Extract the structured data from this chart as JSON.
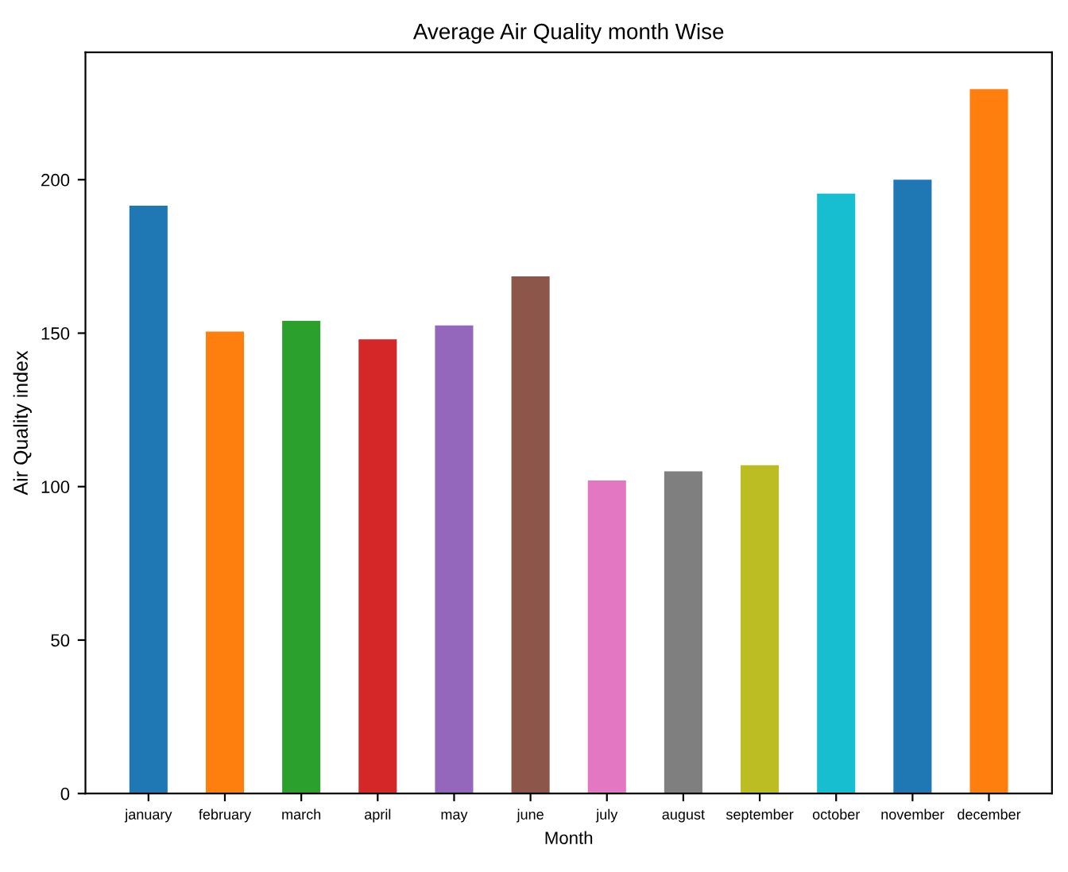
{
  "chart_data": {
    "type": "bar",
    "title": "Average Air Quality month Wise",
    "xlabel": "Month",
    "ylabel": "Air Quality index",
    "categories": [
      "january",
      "february",
      "march",
      "april",
      "may",
      "june",
      "july",
      "august",
      "september",
      "october",
      "november",
      "december"
    ],
    "values": [
      191.5,
      150.5,
      154,
      148,
      152.5,
      168.5,
      102,
      105,
      107,
      195.5,
      200,
      229.5
    ],
    "colors": [
      "#1f77b4",
      "#ff7f0e",
      "#2ca02c",
      "#d62728",
      "#9467bd",
      "#8c564b",
      "#e377c2",
      "#7f7f7f",
      "#bcbd22",
      "#17becf",
      "#1f77b4",
      "#ff7f0e"
    ],
    "ylim": [
      0,
      241.5
    ],
    "yticks": [
      0,
      50,
      100,
      150,
      200
    ],
    "grid": false,
    "legend": false
  }
}
